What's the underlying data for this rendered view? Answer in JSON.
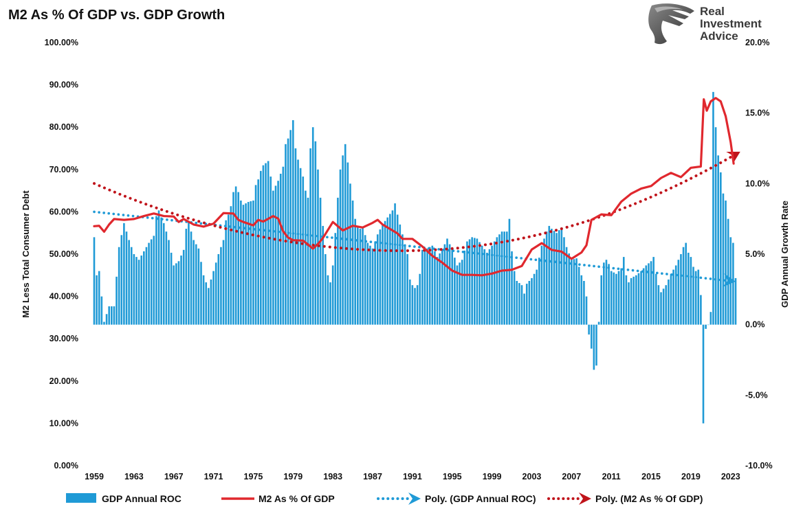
{
  "chart_data": {
    "type": "bar",
    "title": "M2 As % Of GDP vs. GDP Growth",
    "y_left_label": "M2 Less Total Consumer Debt",
    "y_right_label": "GDP Annual Growth Rate",
    "y_left_range": [
      0,
      100
    ],
    "y_right_range": [
      -10,
      20
    ],
    "y_left_ticks": [
      "0.00%",
      "10.00%",
      "20.00%",
      "30.00%",
      "40.00%",
      "50.00%",
      "60.00%",
      "70.00%",
      "80.00%",
      "90.00%",
      "100.00%"
    ],
    "y_right_ticks": [
      "-10.0%",
      "-5.0%",
      "0.0%",
      "5.0%",
      "10.0%",
      "15.0%",
      "20.0%"
    ],
    "x_ticks": [
      "1959",
      "1963",
      "1967",
      "1971",
      "1975",
      "1979",
      "1983",
      "1987",
      "1991",
      "1995",
      "1999",
      "2003",
      "2007",
      "2011",
      "2015",
      "2019",
      "2023"
    ],
    "x_range": [
      1959,
      2023.5
    ],
    "gdp_anchors": [
      [
        1959.0,
        6.2
      ],
      [
        1959.25,
        3.5
      ],
      [
        1959.5,
        3.8
      ],
      [
        1959.75,
        2.0
      ],
      [
        1960.0,
        0.2
      ],
      [
        1960.5,
        1.3
      ],
      [
        1961.0,
        1.3
      ],
      [
        1961.5,
        5.5
      ],
      [
        1962.0,
        7.2
      ],
      [
        1962.5,
        6.0
      ],
      [
        1963.0,
        5.0
      ],
      [
        1963.5,
        4.6
      ],
      [
        1964.0,
        5.2
      ],
      [
        1964.5,
        5.8
      ],
      [
        1965.0,
        6.3
      ],
      [
        1965.25,
        7.7
      ],
      [
        1965.5,
        8.1
      ],
      [
        1965.75,
        7.6
      ],
      [
        1966.0,
        7.2
      ],
      [
        1966.5,
        6.0
      ],
      [
        1967.0,
        4.2
      ],
      [
        1967.5,
        4.5
      ],
      [
        1968.0,
        5.3
      ],
      [
        1968.25,
        6.8
      ],
      [
        1968.5,
        7.3
      ],
      [
        1968.75,
        6.6
      ],
      [
        1969.0,
        6.0
      ],
      [
        1969.5,
        5.4
      ],
      [
        1970.0,
        3.5
      ],
      [
        1970.25,
        3.0
      ],
      [
        1970.5,
        2.6
      ],
      [
        1971.0,
        3.8
      ],
      [
        1971.5,
        5.0
      ],
      [
        1972.0,
        6.0
      ],
      [
        1972.25,
        7.4
      ],
      [
        1972.5,
        7.8
      ],
      [
        1972.75,
        8.4
      ],
      [
        1973.0,
        9.4
      ],
      [
        1973.25,
        9.8
      ],
      [
        1973.5,
        9.4
      ],
      [
        1973.75,
        8.8
      ],
      [
        1974.0,
        8.5
      ],
      [
        1974.5,
        8.7
      ],
      [
        1975.0,
        8.8
      ],
      [
        1975.25,
        9.9
      ],
      [
        1975.5,
        10.3
      ],
      [
        1975.75,
        10.9
      ],
      [
        1976.0,
        11.3
      ],
      [
        1976.5,
        11.6
      ],
      [
        1976.75,
        10.5
      ],
      [
        1977.0,
        9.5
      ],
      [
        1977.5,
        10.2
      ],
      [
        1978.0,
        11.2
      ],
      [
        1978.25,
        12.8
      ],
      [
        1978.5,
        13.2
      ],
      [
        1978.75,
        13.8
      ],
      [
        1979.0,
        14.5
      ],
      [
        1979.25,
        12.5
      ],
      [
        1979.5,
        11.7
      ],
      [
        1980.0,
        10.5
      ],
      [
        1980.25,
        9.5
      ],
      [
        1980.5,
        9.0
      ],
      [
        1980.75,
        12.5
      ],
      [
        1981.0,
        14.0
      ],
      [
        1981.25,
        13.0
      ],
      [
        1981.5,
        11.0
      ],
      [
        1981.75,
        9.0
      ],
      [
        1982.0,
        7.0
      ],
      [
        1982.25,
        5.0
      ],
      [
        1982.5,
        3.5
      ],
      [
        1982.75,
        3.0
      ],
      [
        1983.0,
        4.2
      ],
      [
        1983.25,
        6.5
      ],
      [
        1983.5,
        9.0
      ],
      [
        1983.75,
        11.0
      ],
      [
        1984.0,
        12.0
      ],
      [
        1984.25,
        12.8
      ],
      [
        1984.5,
        11.5
      ],
      [
        1984.75,
        10.0
      ],
      [
        1985.0,
        8.8
      ],
      [
        1985.25,
        7.5
      ],
      [
        1985.5,
        7.0
      ],
      [
        1985.75,
        6.8
      ],
      [
        1986.0,
        6.9
      ],
      [
        1986.5,
        5.8
      ],
      [
        1987.0,
        5.4
      ],
      [
        1987.5,
        6.4
      ],
      [
        1988.0,
        7.1
      ],
      [
        1988.5,
        7.6
      ],
      [
        1989.0,
        8.1
      ],
      [
        1989.25,
        8.6
      ],
      [
        1989.5,
        7.8
      ],
      [
        1990.0,
        6.4
      ],
      [
        1990.5,
        5.0
      ],
      [
        1990.75,
        3.2
      ],
      [
        1991.0,
        2.8
      ],
      [
        1991.25,
        2.6
      ],
      [
        1991.5,
        2.8
      ],
      [
        1991.75,
        3.6
      ],
      [
        1992.0,
        5.3
      ],
      [
        1992.5,
        5.4
      ],
      [
        1993.0,
        5.6
      ],
      [
        1993.5,
        4.8
      ],
      [
        1994.0,
        5.3
      ],
      [
        1994.5,
        6.1
      ],
      [
        1995.0,
        5.3
      ],
      [
        1995.5,
        4.2
      ],
      [
        1996.0,
        4.6
      ],
      [
        1996.5,
        5.9
      ],
      [
        1997.0,
        6.2
      ],
      [
        1997.5,
        6.1
      ],
      [
        1998.0,
        5.6
      ],
      [
        1998.5,
        5.1
      ],
      [
        1999.0,
        5.6
      ],
      [
        1999.5,
        6.2
      ],
      [
        2000.0,
        6.6
      ],
      [
        2000.5,
        6.6
      ],
      [
        2000.75,
        7.5
      ],
      [
        2001.0,
        5.2
      ],
      [
        2001.25,
        3.8
      ],
      [
        2001.5,
        3.1
      ],
      [
        2002.0,
        2.8
      ],
      [
        2002.25,
        2.2
      ],
      [
        2002.5,
        2.9
      ],
      [
        2003.0,
        3.3
      ],
      [
        2003.5,
        3.9
      ],
      [
        2004.0,
        5.6
      ],
      [
        2004.5,
        6.6
      ],
      [
        2004.75,
        7.0
      ],
      [
        2005.0,
        6.8
      ],
      [
        2005.5,
        6.5
      ],
      [
        2006.0,
        6.9
      ],
      [
        2006.5,
        5.5
      ],
      [
        2007.0,
        4.6
      ],
      [
        2007.5,
        4.7
      ],
      [
        2008.0,
        3.5
      ],
      [
        2008.25,
        3.1
      ],
      [
        2008.5,
        2.0
      ],
      [
        2008.75,
        -0.7
      ],
      [
        2009.0,
        -1.7
      ],
      [
        2009.25,
        -3.2
      ],
      [
        2009.5,
        -2.9
      ],
      [
        2009.75,
        0.2
      ],
      [
        2010.0,
        3.5
      ],
      [
        2010.25,
        4.4
      ],
      [
        2010.5,
        4.6
      ],
      [
        2010.75,
        4.3
      ],
      [
        2011.0,
        3.8
      ],
      [
        2011.5,
        3.6
      ],
      [
        2012.0,
        4.0
      ],
      [
        2012.25,
        4.8
      ],
      [
        2012.5,
        3.5
      ],
      [
        2012.75,
        3.0
      ],
      [
        2013.0,
        3.3
      ],
      [
        2013.5,
        3.5
      ],
      [
        2014.0,
        3.8
      ],
      [
        2014.5,
        4.2
      ],
      [
        2015.0,
        4.5
      ],
      [
        2015.25,
        4.8
      ],
      [
        2015.5,
        3.6
      ],
      [
        2015.75,
        2.8
      ],
      [
        2016.0,
        2.3
      ],
      [
        2016.5,
        2.8
      ],
      [
        2017.0,
        3.6
      ],
      [
        2017.5,
        4.2
      ],
      [
        2018.0,
        5.0
      ],
      [
        2018.25,
        5.5
      ],
      [
        2018.5,
        5.8
      ],
      [
        2018.75,
        5.1
      ],
      [
        2019.0,
        4.8
      ],
      [
        2019.25,
        4.1
      ],
      [
        2019.5,
        3.8
      ],
      [
        2019.75,
        3.9
      ],
      [
        2020.0,
        2.1
      ],
      [
        2020.25,
        -7.0
      ],
      [
        2020.5,
        -0.3
      ],
      [
        2020.75,
        0.0
      ],
      [
        2021.0,
        0.9
      ],
      [
        2021.25,
        16.5
      ],
      [
        2021.5,
        14.0
      ],
      [
        2021.75,
        12.0
      ],
      [
        2022.0,
        10.8
      ],
      [
        2022.25,
        9.3
      ],
      [
        2022.5,
        8.8
      ],
      [
        2022.75,
        7.5
      ],
      [
        2023.0,
        6.2
      ],
      [
        2023.25,
        5.8
      ],
      [
        2023.5,
        3.3
      ]
    ],
    "m2_line": [
      [
        1959.0,
        56.6
      ],
      [
        1959.5,
        56.7
      ],
      [
        1960.0,
        55.3
      ],
      [
        1960.5,
        57.0
      ],
      [
        1961.0,
        58.3
      ],
      [
        1962.0,
        58.1
      ],
      [
        1963.0,
        58.3
      ],
      [
        1964.0,
        59.0
      ],
      [
        1965.0,
        59.6
      ],
      [
        1966.0,
        59.0
      ],
      [
        1967.0,
        58.9
      ],
      [
        1967.5,
        57.6
      ],
      [
        1968.0,
        58.3
      ],
      [
        1969.0,
        57.0
      ],
      [
        1970.0,
        56.5
      ],
      [
        1971.0,
        57.2
      ],
      [
        1972.0,
        59.7
      ],
      [
        1973.0,
        59.6
      ],
      [
        1973.5,
        58.1
      ],
      [
        1974.0,
        57.6
      ],
      [
        1975.0,
        56.8
      ],
      [
        1975.5,
        58.1
      ],
      [
        1976.0,
        57.7
      ],
      [
        1977.0,
        59.0
      ],
      [
        1977.5,
        58.4
      ],
      [
        1978.0,
        55.4
      ],
      [
        1978.5,
        53.9
      ],
      [
        1979.0,
        53.3
      ],
      [
        1980.0,
        53.2
      ],
      [
        1981.0,
        51.3
      ],
      [
        1981.5,
        52.4
      ],
      [
        1982.0,
        53.8
      ],
      [
        1983.0,
        57.6
      ],
      [
        1984.0,
        55.6
      ],
      [
        1985.0,
        56.7
      ],
      [
        1986.0,
        56.3
      ],
      [
        1987.0,
        57.4
      ],
      [
        1987.5,
        58.1
      ],
      [
        1988.0,
        57.0
      ],
      [
        1989.0,
        55.6
      ],
      [
        1989.5,
        54.9
      ],
      [
        1990.0,
        53.6
      ],
      [
        1991.0,
        53.6
      ],
      [
        1992.0,
        51.8
      ],
      [
        1993.0,
        49.6
      ],
      [
        1994.0,
        48.0
      ],
      [
        1995.0,
        46.1
      ],
      [
        1996.0,
        45.1
      ],
      [
        1997.0,
        45.1
      ],
      [
        1998.0,
        45.0
      ],
      [
        1999.0,
        45.4
      ],
      [
        2000.0,
        46.1
      ],
      [
        2001.0,
        46.3
      ],
      [
        2002.0,
        47.2
      ],
      [
        2003.0,
        51.1
      ],
      [
        2004.0,
        52.6
      ],
      [
        2005.0,
        51.0
      ],
      [
        2006.0,
        50.6
      ],
      [
        2007.0,
        48.9
      ],
      [
        2008.0,
        50.4
      ],
      [
        2008.5,
        52.1
      ],
      [
        2009.0,
        58.1
      ],
      [
        2010.0,
        59.4
      ],
      [
        2011.0,
        59.2
      ],
      [
        2012.0,
        62.4
      ],
      [
        2013.0,
        64.3
      ],
      [
        2014.0,
        65.5
      ],
      [
        2015.0,
        66.1
      ],
      [
        2016.0,
        68.0
      ],
      [
        2017.0,
        69.2
      ],
      [
        2018.0,
        68.2
      ],
      [
        2019.0,
        70.4
      ],
      [
        2020.0,
        70.7
      ],
      [
        2020.3,
        86.6
      ],
      [
        2020.6,
        83.9
      ],
      [
        2021.0,
        86.1
      ],
      [
        2021.5,
        86.9
      ],
      [
        2022.0,
        86.1
      ],
      [
        2022.5,
        82.6
      ],
      [
        2023.0,
        76.5
      ],
      [
        2023.3,
        71.4
      ]
    ],
    "m2_poly": {
      "y0": 66.7,
      "y1": 50.8,
      "y2": 73.6,
      "vertex": 1990.0
    },
    "gdp_poly": {
      "y0": 8.0,
      "y1": 3.1
    },
    "legend": [
      {
        "name": "GDP Annual ROC",
        "color": "#1f9ad6",
        "style": "bar"
      },
      {
        "name": "M2 As % Of GDP",
        "color": "#e0282e",
        "style": "line"
      },
      {
        "name": "Poly. (GDP Annual ROC)",
        "color": "#1f9ad6",
        "style": "dotted-arrow"
      },
      {
        "name": "Poly. (M2 As % Of GDP)",
        "color": "#c0141b",
        "style": "dotted-arrow"
      }
    ],
    "colors": {
      "bar": "#1f9ad6",
      "m2": "#e0282e",
      "gdp_poly": "#1f9ad6",
      "m2_poly": "#c0141b",
      "logo": "#4a4a4a"
    }
  },
  "logo": {
    "lines": [
      "Real",
      "Investment",
      "Advice"
    ],
    "icon": "eagle-head-icon"
  }
}
